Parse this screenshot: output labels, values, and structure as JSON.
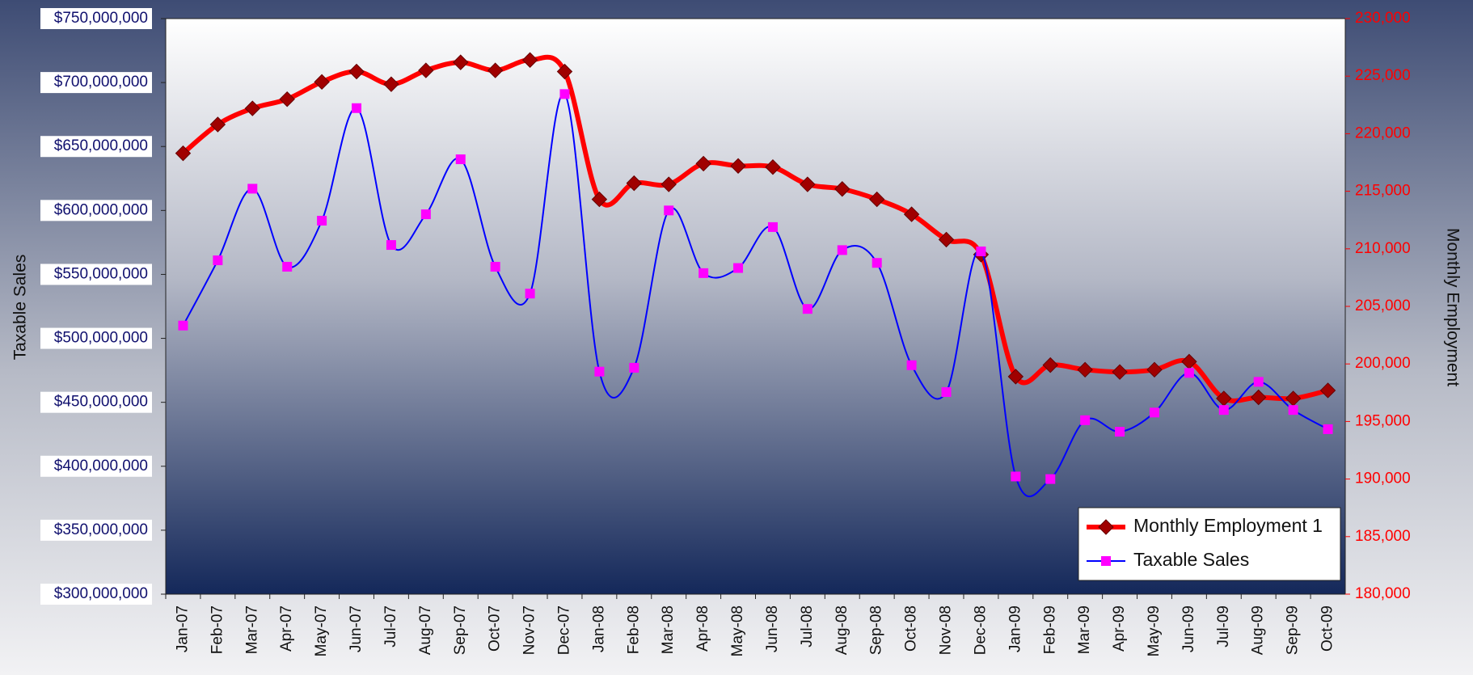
{
  "chart_data": {
    "type": "line",
    "categories": [
      "Jan-07",
      "Feb-07",
      "Mar-07",
      "Apr-07",
      "May-07",
      "Jun-07",
      "Jul-07",
      "Aug-07",
      "Sep-07",
      "Oct-07",
      "Nov-07",
      "Dec-07",
      "Jan-08",
      "Feb-08",
      "Mar-08",
      "Apr-08",
      "May-08",
      "Jun-08",
      "Jul-08",
      "Aug-08",
      "Sep-08",
      "Oct-08",
      "Nov-08",
      "Dec-08",
      "Jan-09",
      "Feb-09",
      "Mar-09",
      "Apr-09",
      "May-09",
      "Jun-09",
      "Jul-09",
      "Aug-09",
      "Sep-09",
      "Oct-09"
    ],
    "series": [
      {
        "name": "Monthly Employment 1",
        "color": "#ff0000",
        "marker_color": "#a00000",
        "axis": "y2",
        "values": [
          218300,
          220800,
          222200,
          223000,
          224500,
          225400,
          224300,
          225500,
          226200,
          225500,
          226400,
          225400,
          214300,
          215700,
          215600,
          217400,
          217200,
          217100,
          215600,
          215200,
          214300,
          213000,
          210800,
          209500,
          198900,
          199900,
          199500,
          199300,
          199500,
          200200,
          197000,
          197100,
          197000,
          197700
        ]
      },
      {
        "name": "Taxable Sales",
        "color": "#0000ff",
        "marker_color": "#ff00ff",
        "axis": "y",
        "values": [
          510000000,
          561000000,
          617000000,
          556000000,
          592000000,
          680000000,
          573000000,
          597000000,
          640000000,
          556000000,
          535000000,
          691000000,
          474000000,
          477000000,
          600000000,
          551000000,
          555000000,
          587000000,
          523000000,
          569000000,
          559000000,
          479000000,
          458000000,
          568000000,
          392000000,
          390000000,
          436000000,
          427000000,
          442000000,
          473000000,
          444000000,
          466000000,
          444000000,
          429000000
        ]
      }
    ],
    "y_label": "Taxable Sales",
    "y2_label": "Monthly Employment",
    "ylim": [
      300000000,
      750000000
    ],
    "yticks": [
      {
        "value": 300000000,
        "label": "$300,000,000"
      },
      {
        "value": 350000000,
        "label": "$350,000,000"
      },
      {
        "value": 400000000,
        "label": "$400,000,000"
      },
      {
        "value": 450000000,
        "label": "$450,000,000"
      },
      {
        "value": 500000000,
        "label": "$500,000,000"
      },
      {
        "value": 550000000,
        "label": "$550,000,000"
      },
      {
        "value": 600000000,
        "label": "$600,000,000"
      },
      {
        "value": 650000000,
        "label": "$650,000,000"
      },
      {
        "value": 700000000,
        "label": "$700,000,000"
      },
      {
        "value": 750000000,
        "label": "$750,000,000"
      }
    ],
    "y2lim": [
      180000,
      230000
    ],
    "y2ticks": [
      {
        "value": 180000,
        "label": "180,000"
      },
      {
        "value": 185000,
        "label": "185,000"
      },
      {
        "value": 190000,
        "label": "190,000"
      },
      {
        "value": 195000,
        "label": "195,000"
      },
      {
        "value": 200000,
        "label": "200,000"
      },
      {
        "value": 205000,
        "label": "205,000"
      },
      {
        "value": 210000,
        "label": "210,000"
      },
      {
        "value": 215000,
        "label": "215,000"
      },
      {
        "value": 220000,
        "label": "220,000"
      },
      {
        "value": 225000,
        "label": "225,000"
      },
      {
        "value": 230000,
        "label": "230,000"
      }
    ],
    "legend": "lower right",
    "smooth": true
  }
}
